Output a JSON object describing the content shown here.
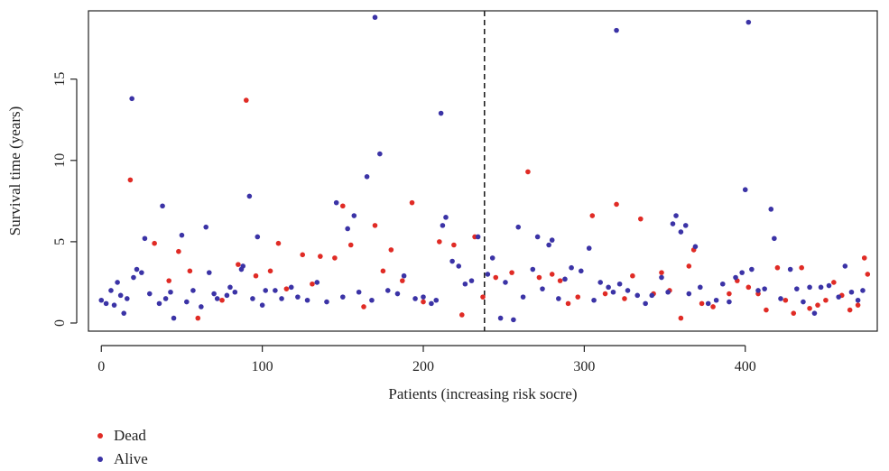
{
  "chart_data": {
    "type": "scatter",
    "title": "",
    "xlabel": "Patients (increasing risk socre)",
    "ylabel": "Survival time (years)",
    "xlim": [
      -8,
      482
    ],
    "ylim": [
      -0.5,
      19.2
    ],
    "x_ticks": [
      0,
      100,
      200,
      300,
      400
    ],
    "y_ticks": [
      0,
      5,
      10,
      15
    ],
    "cutoff_x": 238,
    "legend_position": "bottom-left",
    "series": [
      {
        "name": "Dead",
        "color": "#e02b25",
        "points": [
          [
            18,
            8.8
          ],
          [
            33,
            4.9
          ],
          [
            42,
            2.6
          ],
          [
            48,
            4.4
          ],
          [
            55,
            3.2
          ],
          [
            60,
            0.3
          ],
          [
            75,
            1.4
          ],
          [
            85,
            3.6
          ],
          [
            90,
            13.7
          ],
          [
            96,
            2.9
          ],
          [
            105,
            3.2
          ],
          [
            110,
            4.9
          ],
          [
            115,
            2.1
          ],
          [
            125,
            4.2
          ],
          [
            131,
            2.4
          ],
          [
            136,
            4.1
          ],
          [
            145,
            4.0
          ],
          [
            150,
            7.2
          ],
          [
            155,
            4.8
          ],
          [
            163,
            1.0
          ],
          [
            170,
            6.0
          ],
          [
            175,
            3.2
          ],
          [
            180,
            4.5
          ],
          [
            187,
            2.6
          ],
          [
            193,
            7.4
          ],
          [
            200,
            1.3
          ],
          [
            210,
            5.0
          ],
          [
            219,
            4.8
          ],
          [
            224,
            0.5
          ],
          [
            232,
            5.3
          ],
          [
            237,
            1.6
          ],
          [
            245,
            2.8
          ],
          [
            255,
            3.1
          ],
          [
            265,
            9.3
          ],
          [
            272,
            2.8
          ],
          [
            280,
            3.0
          ],
          [
            285,
            2.6
          ],
          [
            290,
            1.2
          ],
          [
            296,
            1.6
          ],
          [
            305,
            6.6
          ],
          [
            313,
            1.8
          ],
          [
            320,
            7.3
          ],
          [
            325,
            1.5
          ],
          [
            330,
            2.9
          ],
          [
            335,
            6.4
          ],
          [
            343,
            1.8
          ],
          [
            348,
            3.1
          ],
          [
            353,
            2.0
          ],
          [
            360,
            0.3
          ],
          [
            365,
            3.5
          ],
          [
            368,
            4.5
          ],
          [
            373,
            1.2
          ],
          [
            380,
            1.0
          ],
          [
            390,
            1.8
          ],
          [
            395,
            2.6
          ],
          [
            402,
            2.2
          ],
          [
            408,
            1.8
          ],
          [
            413,
            0.8
          ],
          [
            420,
            3.4
          ],
          [
            425,
            1.4
          ],
          [
            430,
            0.6
          ],
          [
            435,
            3.4
          ],
          [
            440,
            0.9
          ],
          [
            445,
            1.1
          ],
          [
            450,
            1.4
          ],
          [
            455,
            2.5
          ],
          [
            460,
            1.7
          ],
          [
            465,
            0.8
          ],
          [
            470,
            1.1
          ],
          [
            474,
            4.0
          ],
          [
            476,
            3.0
          ]
        ]
      },
      {
        "name": "Alive",
        "color": "#3b33a6",
        "points": [
          [
            0,
            1.4
          ],
          [
            3,
            1.2
          ],
          [
            6,
            2.0
          ],
          [
            8,
            1.1
          ],
          [
            10,
            2.5
          ],
          [
            12,
            1.7
          ],
          [
            14,
            0.6
          ],
          [
            16,
            1.5
          ],
          [
            19,
            13.8
          ],
          [
            20,
            2.8
          ],
          [
            22,
            3.3
          ],
          [
            25,
            3.1
          ],
          [
            27,
            5.2
          ],
          [
            30,
            1.8
          ],
          [
            36,
            1.2
          ],
          [
            38,
            7.2
          ],
          [
            40,
            1.5
          ],
          [
            43,
            1.9
          ],
          [
            45,
            0.3
          ],
          [
            50,
            5.4
          ],
          [
            53,
            1.3
          ],
          [
            57,
            2.0
          ],
          [
            62,
            1.0
          ],
          [
            65,
            5.9
          ],
          [
            67,
            3.1
          ],
          [
            70,
            1.8
          ],
          [
            72,
            1.5
          ],
          [
            78,
            1.7
          ],
          [
            80,
            2.2
          ],
          [
            83,
            1.9
          ],
          [
            87,
            3.3
          ],
          [
            88,
            3.5
          ],
          [
            92,
            7.8
          ],
          [
            94,
            1.5
          ],
          [
            97,
            5.3
          ],
          [
            100,
            1.1
          ],
          [
            102,
            2.0
          ],
          [
            108,
            2.0
          ],
          [
            112,
            1.5
          ],
          [
            118,
            2.2
          ],
          [
            122,
            1.6
          ],
          [
            128,
            1.4
          ],
          [
            134,
            2.5
          ],
          [
            140,
            1.3
          ],
          [
            146,
            7.4
          ],
          [
            150,
            1.6
          ],
          [
            153,
            5.8
          ],
          [
            157,
            6.6
          ],
          [
            160,
            1.9
          ],
          [
            165,
            9.0
          ],
          [
            168,
            1.4
          ],
          [
            170,
            18.8
          ],
          [
            173,
            10.4
          ],
          [
            178,
            2.0
          ],
          [
            184,
            1.8
          ],
          [
            188,
            2.9
          ],
          [
            195,
            1.5
          ],
          [
            200,
            1.6
          ],
          [
            205,
            1.2
          ],
          [
            208,
            1.4
          ],
          [
            211,
            12.9
          ],
          [
            212,
            6.0
          ],
          [
            214,
            6.5
          ],
          [
            218,
            3.8
          ],
          [
            222,
            3.5
          ],
          [
            226,
            2.4
          ],
          [
            230,
            2.6
          ],
          [
            234,
            5.3
          ],
          [
            240,
            3.0
          ],
          [
            243,
            4.0
          ],
          [
            248,
            0.3
          ],
          [
            251,
            2.5
          ],
          [
            256,
            0.2
          ],
          [
            259,
            5.9
          ],
          [
            262,
            1.6
          ],
          [
            268,
            3.3
          ],
          [
            271,
            5.3
          ],
          [
            274,
            2.1
          ],
          [
            278,
            4.8
          ],
          [
            280,
            5.1
          ],
          [
            284,
            1.5
          ],
          [
            288,
            2.7
          ],
          [
            292,
            3.4
          ],
          [
            298,
            3.2
          ],
          [
            303,
            4.6
          ],
          [
            306,
            1.4
          ],
          [
            310,
            2.5
          ],
          [
            315,
            2.2
          ],
          [
            318,
            1.9
          ],
          [
            320,
            18.0
          ],
          [
            322,
            2.4
          ],
          [
            327,
            2.0
          ],
          [
            333,
            1.7
          ],
          [
            338,
            1.2
          ],
          [
            342,
            1.7
          ],
          [
            348,
            2.8
          ],
          [
            352,
            1.9
          ],
          [
            355,
            6.1
          ],
          [
            357,
            6.6
          ],
          [
            360,
            5.6
          ],
          [
            363,
            6.0
          ],
          [
            365,
            1.8
          ],
          [
            369,
            4.7
          ],
          [
            372,
            2.2
          ],
          [
            377,
            1.2
          ],
          [
            382,
            1.4
          ],
          [
            386,
            2.4
          ],
          [
            390,
            1.3
          ],
          [
            394,
            2.8
          ],
          [
            398,
            3.1
          ],
          [
            400,
            8.2
          ],
          [
            402,
            18.5
          ],
          [
            404,
            3.3
          ],
          [
            408,
            2.0
          ],
          [
            412,
            2.1
          ],
          [
            416,
            7.0
          ],
          [
            418,
            5.2
          ],
          [
            422,
            1.5
          ],
          [
            428,
            3.3
          ],
          [
            432,
            2.1
          ],
          [
            436,
            1.3
          ],
          [
            440,
            2.2
          ],
          [
            443,
            0.6
          ],
          [
            447,
            2.2
          ],
          [
            452,
            2.3
          ],
          [
            458,
            1.6
          ],
          [
            462,
            3.5
          ],
          [
            466,
            1.9
          ],
          [
            470,
            1.4
          ],
          [
            473,
            2.0
          ]
        ]
      }
    ]
  },
  "legend": {
    "items": [
      {
        "label": "Dead",
        "color": "#e02b25"
      },
      {
        "label": "Alive",
        "color": "#3b33a6"
      }
    ]
  }
}
